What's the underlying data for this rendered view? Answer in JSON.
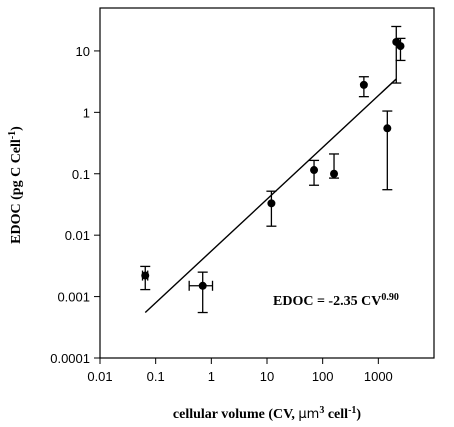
{
  "chart_data": {
    "type": "scatter",
    "title": "",
    "xlabel": {
      "main": "cellular volume (CV, ",
      "mu": "μm",
      "sup1": "3",
      "mid": " cell",
      "sup2": "-1",
      "end": ")"
    },
    "ylabel": {
      "main": "EDOC (pg C Cell",
      "sup": "-1",
      "end": ")"
    },
    "xscale": "log",
    "yscale": "log",
    "xlim": [
      0.01,
      10000
    ],
    "ylim": [
      0.0001,
      50
    ],
    "x_ticks": [
      0.01,
      0.1,
      1,
      10,
      100,
      1000
    ],
    "x_tick_labels": [
      "0.01",
      "0.1",
      "1",
      "10",
      "100",
      "1000"
    ],
    "y_ticks": [
      0.0001,
      0.001,
      0.01,
      0.1,
      1,
      10
    ],
    "y_tick_labels": [
      "0.0001",
      "0.001",
      "0.01",
      "0.1",
      "1",
      "10"
    ],
    "grid": false,
    "legend": "none",
    "points": [
      {
        "x": 0.065,
        "y": 0.0022,
        "y_low": 0.0013,
        "y_high": 0.0031,
        "x_low": 0.058,
        "x_high": 0.072
      },
      {
        "x": 0.7,
        "y": 0.0015,
        "y_low": 0.00055,
        "y_high": 0.0025,
        "x_low": 0.4,
        "x_high": 1.05
      },
      {
        "x": 12,
        "y": 0.033,
        "y_low": 0.014,
        "y_high": 0.052
      },
      {
        "x": 70,
        "y": 0.115,
        "y_low": 0.065,
        "y_high": 0.165
      },
      {
        "x": 160,
        "y": 0.1,
        "y_low": 0.085,
        "y_high": 0.21
      },
      {
        "x": 550,
        "y": 2.8,
        "y_low": 1.8,
        "y_high": 3.8
      },
      {
        "x": 1450,
        "y": 0.55,
        "y_low": 0.055,
        "y_high": 1.05
      },
      {
        "x": 2100,
        "y": 14,
        "y_low": 3,
        "y_high": 25
      },
      {
        "x": 2500,
        "y": 12,
        "y_low": 7,
        "y_high": 16
      }
    ],
    "fit_line": {
      "x_start": 0.065,
      "x_end": 2100,
      "y_start": 0.00055,
      "y_end": 3.5
    },
    "annotation": {
      "text": "EDOC = -2.35 CV",
      "sup": "0.90"
    },
    "marker_color": "#000000"
  }
}
